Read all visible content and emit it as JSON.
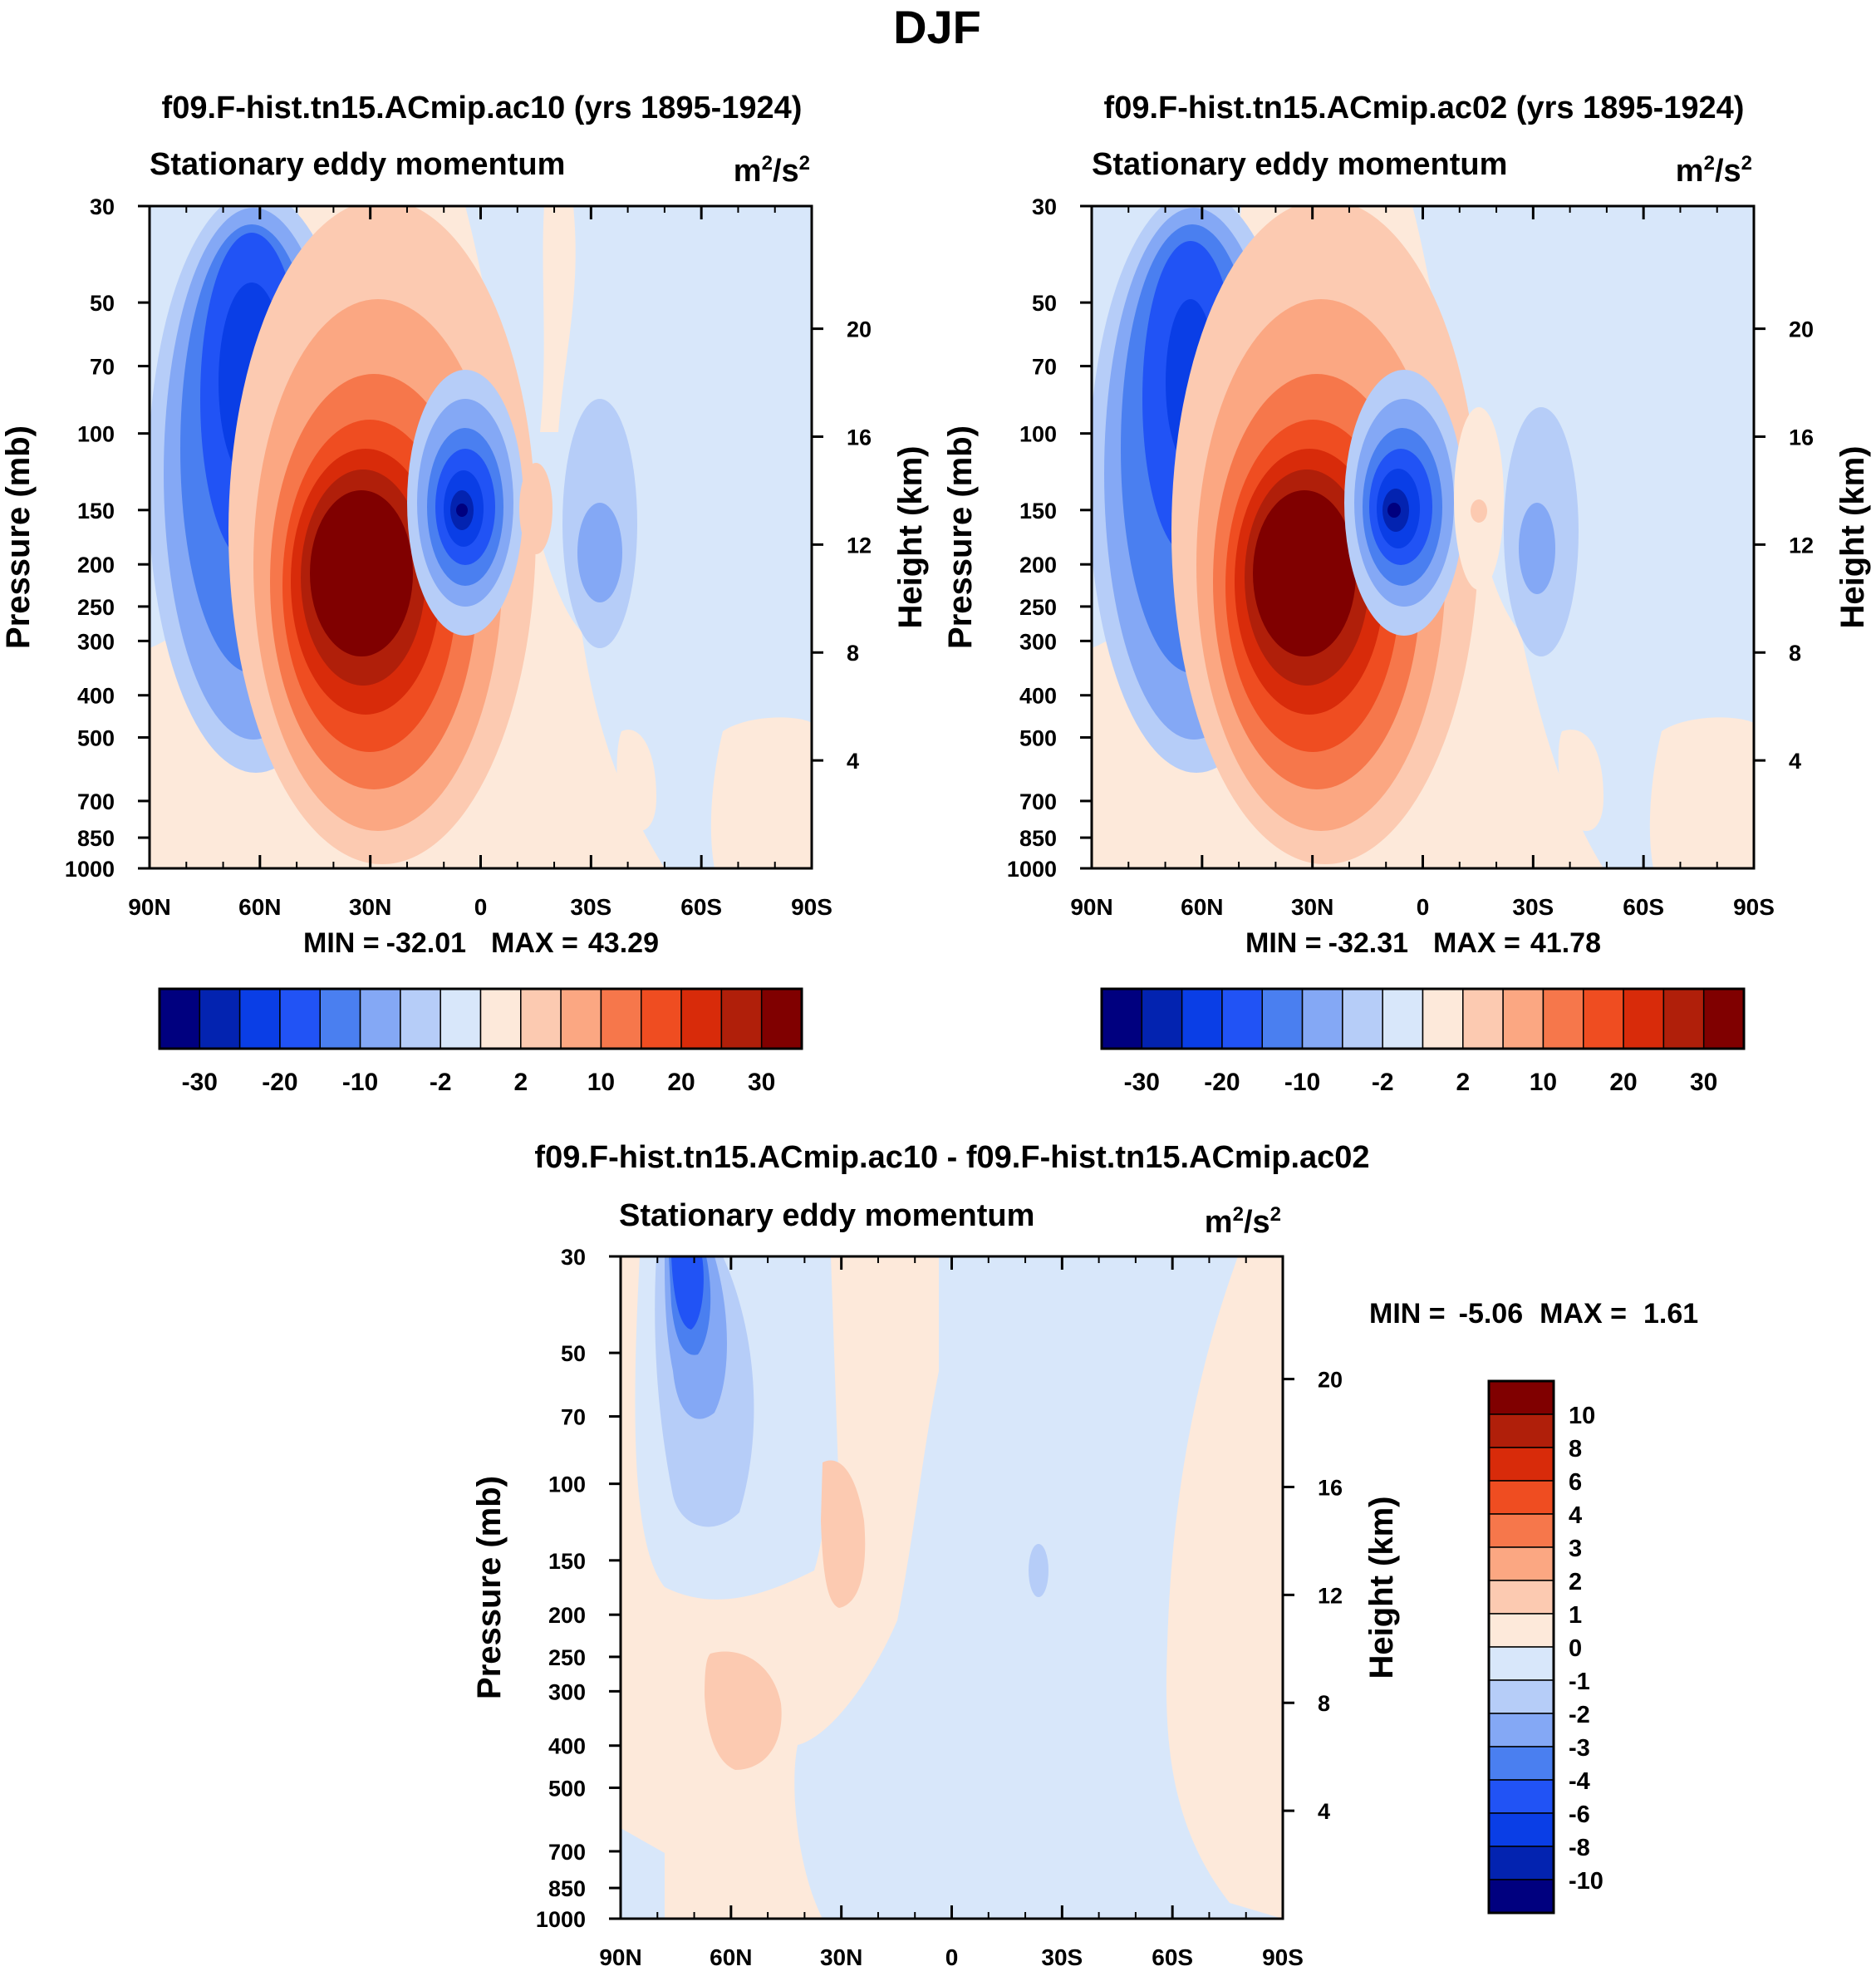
{
  "figure": {
    "title": "DJF",
    "variable": "Stationary eddy momentum",
    "units": {
      "base": "m",
      "exp1": "2",
      "mid": "/s",
      "exp2": "2"
    },
    "left_axis_label": "Pressure (mb)",
    "right_axis_label": "Height (km)",
    "min_label": "MIN =",
    "max_label": "MAX ="
  },
  "chart_data": [
    {
      "type": "heatmap",
      "title": "f09.F-hist.tn15.ACmip.ac10 (yrs 1895-1924)",
      "subtitle": "Stationary eddy momentum",
      "xlabel": "",
      "ylabel": "Pressure (mb)",
      "y2label": "Height (km)",
      "x_ticks": [
        "90N",
        "60N",
        "30N",
        "0",
        "30S",
        "60S",
        "90S"
      ],
      "y_ticks": [
        30,
        50,
        70,
        100,
        150,
        200,
        250,
        300,
        400,
        500,
        700,
        850,
        1000
      ],
      "y2_ticks": [
        4,
        8,
        12,
        16,
        20
      ],
      "min": "-32.01",
      "max": "43.29",
      "contour_levels": [
        -30,
        -25,
        -20,
        -15,
        -10,
        -5,
        -2,
        0,
        2,
        5,
        10,
        15,
        20,
        25,
        30
      ],
      "colorbar_labels": [
        "-30",
        "-20",
        "-10",
        "-2",
        "2",
        "10",
        "20",
        "30"
      ],
      "features": [
        {
          "lat": 63,
          "p": 90,
          "value": -26
        },
        {
          "lat": 30,
          "p": 230,
          "value": 43
        },
        {
          "lat": 7,
          "p": 150,
          "value": -32
        },
        {
          "lat": -15,
          "p": 150,
          "value": 3
        },
        {
          "lat": -30,
          "p": 160,
          "value": -7
        }
      ]
    },
    {
      "type": "heatmap",
      "title": "f09.F-hist.tn15.ACmip.ac02 (yrs 1895-1924)",
      "subtitle": "Stationary eddy momentum",
      "xlabel": "",
      "ylabel": "Pressure (mb)",
      "y2label": "Height (km)",
      "x_ticks": [
        "90N",
        "60N",
        "30N",
        "0",
        "30S",
        "60S",
        "90S"
      ],
      "y_ticks": [
        30,
        50,
        70,
        100,
        150,
        200,
        250,
        300,
        400,
        500,
        700,
        850,
        1000
      ],
      "y2_ticks": [
        4,
        8,
        12,
        16,
        20
      ],
      "min": "-32.31",
      "max": "41.78",
      "contour_levels": [
        -30,
        -25,
        -20,
        -15,
        -10,
        -5,
        -2,
        0,
        2,
        5,
        10,
        15,
        20,
        25,
        30
      ],
      "colorbar_labels": [
        "-30",
        "-20",
        "-10",
        "-2",
        "2",
        "10",
        "20",
        "30"
      ],
      "features": [
        {
          "lat": 62,
          "p": 90,
          "value": -24
        },
        {
          "lat": 30,
          "p": 230,
          "value": 41
        },
        {
          "lat": 8,
          "p": 150,
          "value": -32
        },
        {
          "lat": -15,
          "p": 150,
          "value": 3
        },
        {
          "lat": -30,
          "p": 170,
          "value": -7
        }
      ]
    },
    {
      "type": "heatmap",
      "title": "f09.F-hist.tn15.ACmip.ac10 - f09.F-hist.tn15.ACmip.ac02",
      "subtitle": "Stationary eddy momentum",
      "xlabel": "",
      "ylabel": "Pressure (mb)",
      "y2label": "Height (km)",
      "x_ticks": [
        "90N",
        "60N",
        "30N",
        "0",
        "30S",
        "60S",
        "90S"
      ],
      "y_ticks": [
        30,
        50,
        70,
        100,
        150,
        200,
        250,
        300,
        400,
        500,
        700,
        850,
        1000
      ],
      "y2_ticks": [
        4,
        8,
        12,
        16,
        20
      ],
      "min": "-5.06",
      "max": "1.61",
      "contour_levels": [
        -10,
        -8,
        -6,
        -4,
        -3,
        -2,
        -1,
        0,
        1,
        2,
        3,
        4,
        6,
        8,
        10
      ],
      "colorbar_labels": [
        "10",
        "8",
        "6",
        "4",
        "3",
        "2",
        "1",
        "0",
        "-1",
        "-2",
        "-3",
        "-4",
        "-6",
        "-8",
        "-10"
      ],
      "features": [
        {
          "lat": 72,
          "p": 45,
          "value": -5
        },
        {
          "lat": 60,
          "p": 100,
          "value": -1.5
        },
        {
          "lat": 65,
          "p": 320,
          "value": 1.6
        },
        {
          "lat": 30,
          "p": 200,
          "value": 1.2
        }
      ]
    }
  ],
  "colors": {
    "main_scale": [
      "#00007f",
      "#0323b0",
      "#0a3ee6",
      "#2153f5",
      "#4a7ff0",
      "#84a8f5",
      "#b6cdf8",
      "#d8e7fa",
      "#fde9da",
      "#fccab1",
      "#fba782",
      "#f6774b",
      "#ef4d21",
      "#d82b0a",
      "#b01f0a",
      "#800000"
    ],
    "diff_scale": [
      "#00007f",
      "#0323b0",
      "#0a3ee6",
      "#2153f5",
      "#4a7ff0",
      "#84a8f5",
      "#b6cdf8",
      "#d8e7fa",
      "#fde9da",
      "#fccab1",
      "#fba782",
      "#f6774b",
      "#ef4d21",
      "#d82b0a",
      "#b01f0a",
      "#800000"
    ]
  }
}
